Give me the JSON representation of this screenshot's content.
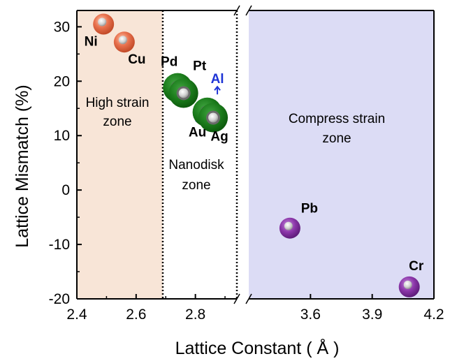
{
  "chart_data": {
    "type": "scatter",
    "xlabel": "Lattice Constant ( Å )",
    "ylabel": "Lattice Mismatch (%)",
    "x_ticks": [
      "2.4",
      "2.6",
      "2.8",
      "3.6",
      "3.9",
      "4.2"
    ],
    "x_break": {
      "from": 2.94,
      "to": 3.3
    },
    "xlim": [
      2.4,
      4.2
    ],
    "y_ticks": [
      "30",
      "20",
      "10",
      "0",
      "-10",
      "-20"
    ],
    "ylim": [
      -20,
      33
    ],
    "grid": false,
    "zones": [
      {
        "name": "high-strain",
        "lines": [
          "High strain",
          "zone"
        ],
        "x_range": [
          2.4,
          2.69
        ],
        "color": "#f8e5d7"
      },
      {
        "name": "nanodisk",
        "lines": [
          "Nanodisk",
          "zone"
        ],
        "x_range": [
          2.69,
          2.94
        ],
        "color": "#ffffff"
      },
      {
        "name": "compress-strain",
        "lines": [
          "Compress strain",
          "zone"
        ],
        "x_range": [
          3.3,
          4.2
        ],
        "color": "#dcdcf5"
      }
    ],
    "points": [
      {
        "label": "Ni",
        "x": 2.49,
        "y": 30.5,
        "color": "#e8714e",
        "size": "small"
      },
      {
        "label": "Cu",
        "x": 2.56,
        "y": 27.2,
        "color": "#e8714e",
        "size": "small"
      },
      {
        "label": "Pd",
        "x": 2.74,
        "y": 18.8,
        "color": "#1a7a1a",
        "size": "large"
      },
      {
        "label": "Pt",
        "x": 2.76,
        "y": 17.8,
        "color": "#1a7a1a",
        "size": "large"
      },
      {
        "label": "Au",
        "x": 2.84,
        "y": 14.3,
        "color": "#1a7a1a",
        "size": "large"
      },
      {
        "label": "Ag",
        "x": 2.86,
        "y": 13.3,
        "color": "#1a7a1a",
        "size": "large"
      },
      {
        "label": "Pb",
        "x": 3.5,
        "y": -7.0,
        "color": "#8a35a8",
        "size": "small"
      },
      {
        "label": "Cr",
        "x": 4.08,
        "y": -17.8,
        "color": "#8a35a8",
        "size": "small"
      }
    ],
    "annotations": [
      {
        "label": "Al",
        "x": 2.86,
        "y": 19.5,
        "color": "#1f35d6"
      }
    ]
  }
}
